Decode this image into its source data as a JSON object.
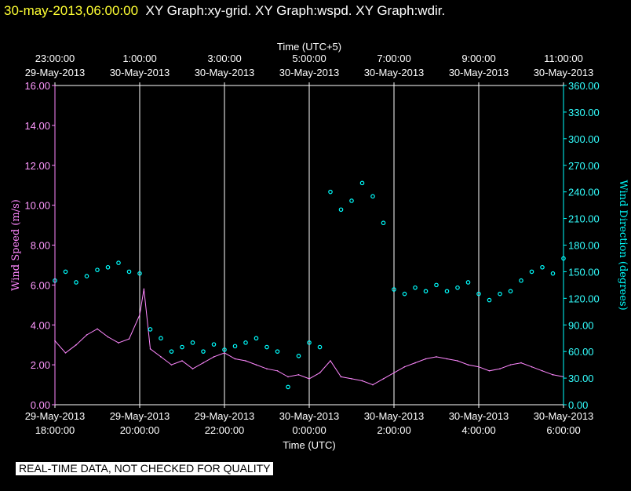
{
  "header": {
    "timestamp": "30-may-2013,06:00:00",
    "graphs": "XY Graph:xy-grid.  XY Graph:wspd.  XY Graph:wdir."
  },
  "disclaimer": "REAL-TIME DATA, NOT CHECKED FOR QUALITY",
  "colors": {
    "speed": "#ff88ff",
    "direction": "#00ffff",
    "grid": "#ffffff",
    "title_time": "#ffff33"
  },
  "chart_data": {
    "type": "line+scatter",
    "top_axis": {
      "title": "Time (UTC+5)",
      "ticks": [
        {
          "time": "23:00:00",
          "date": "29-May-2013"
        },
        {
          "time": "1:00:00",
          "date": "30-May-2013"
        },
        {
          "time": "3:00:00",
          "date": "30-May-2013"
        },
        {
          "time": "5:00:00",
          "date": "30-May-2013"
        },
        {
          "time": "7:00:00",
          "date": "30-May-2013"
        },
        {
          "time": "9:00:00",
          "date": "30-May-2013"
        },
        {
          "time": "11:00:00",
          "date": "30-May-2013"
        }
      ]
    },
    "bottom_axis": {
      "title": "Time (UTC)",
      "range_hours": [
        18,
        30
      ],
      "ticks": [
        {
          "date": "29-May-2013",
          "time": "18:00:00"
        },
        {
          "date": "29-May-2013",
          "time": "20:00:00"
        },
        {
          "date": "29-May-2013",
          "time": "22:00:00"
        },
        {
          "date": "30-May-2013",
          "time": "0:00:00"
        },
        {
          "date": "30-May-2013",
          "time": "2:00:00"
        },
        {
          "date": "30-May-2013",
          "time": "4:00:00"
        },
        {
          "date": "30-May-2013",
          "time": "6:00:00"
        }
      ]
    },
    "left_axis": {
      "title": "Wind Speed (m/s)",
      "range": [
        0,
        16
      ],
      "ticks": [
        "0.00",
        "2.00",
        "4.00",
        "6.00",
        "8.00",
        "10.00",
        "12.00",
        "14.00",
        "16.00"
      ]
    },
    "right_axis": {
      "title": "Wind Direction (degrees)",
      "range": [
        0,
        360
      ],
      "ticks": [
        "0.00",
        "30.00",
        "60.00",
        "90.00",
        "120.00",
        "150.00",
        "180.00",
        "210.00",
        "240.00",
        "270.00",
        "300.00",
        "330.00",
        "360.00"
      ]
    },
    "series": [
      {
        "name": "Wind Speed",
        "type": "line",
        "axis": "left",
        "x_hours": [
          18.0,
          18.25,
          18.5,
          18.75,
          19.0,
          19.25,
          19.5,
          19.75,
          20.0,
          20.1,
          20.25,
          20.5,
          20.75,
          21.0,
          21.25,
          21.5,
          21.75,
          22.0,
          22.25,
          22.5,
          22.75,
          23.0,
          23.25,
          23.5,
          23.75,
          24.0,
          24.25,
          24.5,
          24.75,
          25.0,
          25.25,
          25.5,
          25.75,
          26.0,
          26.25,
          26.5,
          26.75,
          27.0,
          27.25,
          27.5,
          27.75,
          28.0,
          28.25,
          28.5,
          28.75,
          29.0,
          29.25,
          29.5,
          29.75,
          30.0
        ],
        "values": [
          3.2,
          2.6,
          3.0,
          3.5,
          3.8,
          3.4,
          3.1,
          3.3,
          4.5,
          5.8,
          2.8,
          2.4,
          2.0,
          2.2,
          1.8,
          2.1,
          2.4,
          2.6,
          2.3,
          2.2,
          2.0,
          1.8,
          1.7,
          1.4,
          1.5,
          1.3,
          1.6,
          2.2,
          1.4,
          1.3,
          1.2,
          1.0,
          1.3,
          1.6,
          1.9,
          2.1,
          2.3,
          2.4,
          2.3,
          2.2,
          2.0,
          1.9,
          1.7,
          1.8,
          2.0,
          2.1,
          1.9,
          1.7,
          1.5,
          1.4
        ]
      },
      {
        "name": "Wind Direction",
        "type": "scatter",
        "axis": "right",
        "x_hours": [
          18.0,
          18.25,
          18.5,
          18.75,
          19.0,
          19.25,
          19.5,
          19.75,
          20.0,
          20.25,
          20.5,
          20.75,
          21.0,
          21.25,
          21.5,
          21.75,
          22.0,
          22.25,
          22.5,
          22.75,
          23.0,
          23.25,
          23.5,
          23.75,
          24.0,
          24.25,
          24.5,
          24.75,
          25.0,
          25.25,
          25.5,
          25.75,
          26.0,
          26.25,
          26.5,
          26.75,
          27.0,
          27.25,
          27.5,
          27.75,
          28.0,
          28.25,
          28.5,
          28.75,
          29.0,
          29.25,
          29.5,
          29.75,
          30.0
        ],
        "values": [
          140,
          150,
          138,
          145,
          152,
          155,
          160,
          150,
          148,
          85,
          75,
          60,
          65,
          70,
          60,
          68,
          62,
          66,
          70,
          75,
          65,
          60,
          20,
          55,
          70,
          65,
          240,
          220,
          230,
          250,
          235,
          205,
          130,
          125,
          132,
          128,
          135,
          128,
          132,
          138,
          125,
          118,
          125,
          128,
          140,
          150,
          155,
          148,
          165
        ]
      }
    ]
  }
}
